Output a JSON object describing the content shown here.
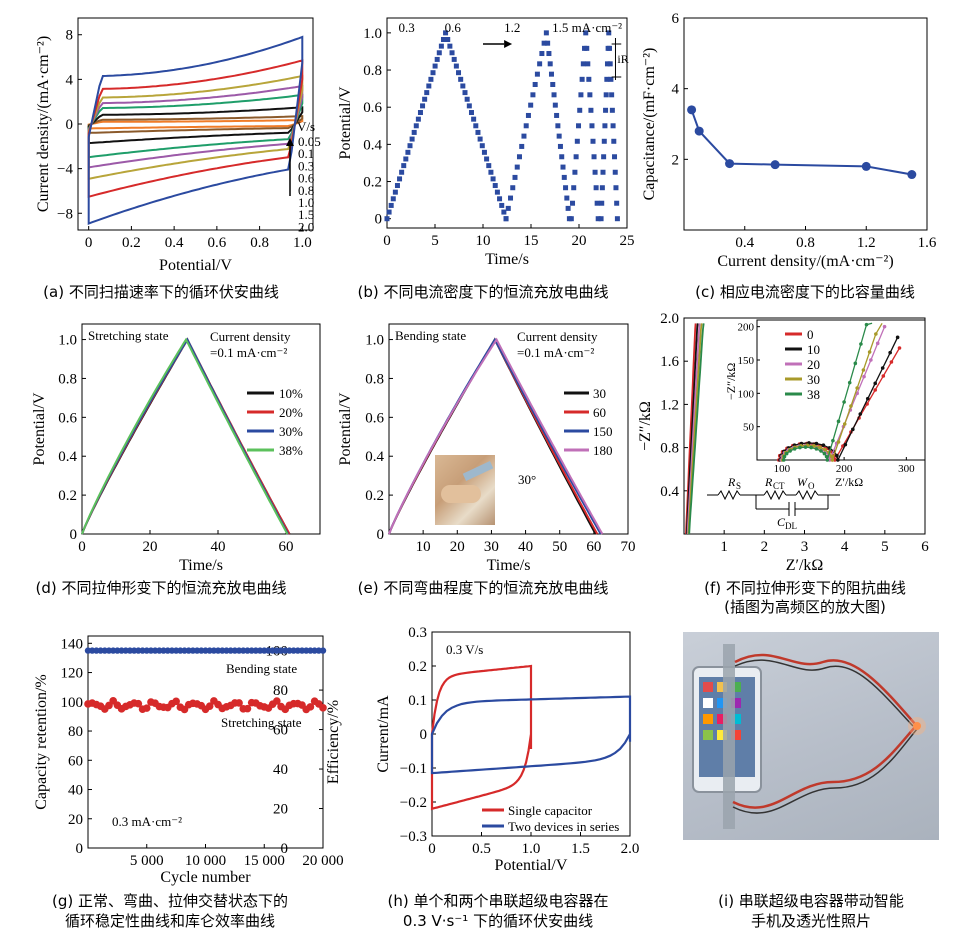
{
  "captions": {
    "a": "(a) 不同扫描速率下的循环伏安曲线",
    "b": "(b) 不同电流密度下的恒流充放电曲线",
    "c": "(c) 相应电流密度下的比容量曲线",
    "d": "(d) 不同拉伸形变下的恒流充放电曲线",
    "e": "(e) 不同弯曲程度下的恒流充放电曲线",
    "f1": "(f) 不同拉伸形变下的阻抗曲线",
    "f2": "(插图为高频区的放大图)",
    "g1": "(g) 正常、弯曲、拉伸交替状态下的",
    "g2": "循环稳定性曲线和库仑效率曲线",
    "h1": "(h) 单个和两个串联超级电容器在",
    "h2": "0.3 V·s⁻¹ 下的循环伏安曲线",
    "i1": "(i) 串联超级电容器带动智能",
    "i2": "手机及透光性照片"
  },
  "chart_data": [
    {
      "id": "a",
      "type": "line",
      "xlabel": "Potential/V",
      "ylabel": "Current density/(mA·cm⁻²)",
      "xlim": [
        -0.05,
        1.05
      ],
      "ylim": [
        -9.5,
        9.5
      ],
      "xticks": [
        0,
        0.2,
        0.4,
        0.6,
        0.8,
        1.0
      ],
      "xticklabels": [
        "0",
        "0.2",
        "0.4",
        "0.6",
        "0.8",
        "1.0"
      ],
      "yticks": [
        -8,
        -4,
        0,
        4,
        8
      ],
      "yticklabels": [
        "−8",
        "−4",
        "0",
        "4",
        "8"
      ],
      "legend_title": "V/s",
      "series": [
        {
          "name": "0.05",
          "color": "#f07c28",
          "amplitude": 0.35
        },
        {
          "name": "0.1",
          "color": "#8b5a2b",
          "amplitude": 0.7
        },
        {
          "name": "0.3",
          "color": "#111111",
          "amplitude": 1.5
        },
        {
          "name": "0.6",
          "color": "#1f9e6a",
          "amplitude": 2.6
        },
        {
          "name": "0.8",
          "color": "#9c5aa8",
          "amplitude": 3.4
        },
        {
          "name": "1.0",
          "color": "#b8a53a",
          "amplitude": 4.3
        },
        {
          "name": "1.5",
          "color": "#d62a2a",
          "amplitude": 5.7
        },
        {
          "name": "2.0",
          "color": "#2b4aa0",
          "amplitude": 7.8
        }
      ]
    },
    {
      "id": "b",
      "type": "scatter",
      "xlabel": "Time/s",
      "ylabel": "Potential/V",
      "xlim": [
        0,
        25
      ],
      "ylim": [
        -0.05,
        1.08
      ],
      "xticks": [
        0,
        5,
        10,
        15,
        20,
        25
      ],
      "yticks": [
        0,
        0.2,
        0.4,
        0.6,
        0.8,
        1.0
      ],
      "yticklabels": [
        "0",
        "0.2",
        "0.4",
        "0.6",
        "0.8",
        "1.0"
      ],
      "color": "#2b4aa0",
      "annotations": [
        "0.3",
        "0.6",
        "1.2",
        "1.5 mA·cm⁻²",
        "iR"
      ],
      "segments": [
        {
          "t": [
            0,
            6.1,
            12.4
          ]
        },
        {
          "t": [
            12.4,
            16.6,
            19.0
          ]
        },
        {
          "t": [
            19.2,
            20.7,
            22.0
          ]
        },
        {
          "t": [
            22.3,
            23.1,
            24.0
          ]
        }
      ]
    },
    {
      "id": "c",
      "type": "line",
      "xlabel": "Current density/(mA·cm⁻²)",
      "ylabel": "Capacitance/(mF·cm⁻²)",
      "xlim": [
        0,
        1.6
      ],
      "ylim": [
        0,
        6
      ],
      "xticks": [
        0,
        0.4,
        0.8,
        1.2,
        1.6
      ],
      "xticklabels": [
        "",
        "0.4",
        "0.8",
        "1.2",
        "1.6"
      ],
      "yticks": [
        2,
        4,
        6
      ],
      "yticklabels": [
        "2",
        "4",
        "6"
      ],
      "x": [
        0.05,
        0.1,
        0.3,
        0.6,
        1.2,
        1.5
      ],
      "y": [
        3.4,
        2.8,
        1.88,
        1.85,
        1.8,
        1.57
      ],
      "color": "#2b4aa0"
    },
    {
      "id": "d",
      "type": "line",
      "xlabel": "Time/s",
      "ylabel": "Potential/V",
      "xlim": [
        0,
        70
      ],
      "ylim": [
        0,
        1.08
      ],
      "xticks": [
        0,
        20,
        40,
        60
      ],
      "yticks": [
        0,
        0.2,
        0.4,
        0.6,
        0.8,
        1.0
      ],
      "yticklabels": [
        "0",
        "0.2",
        "0.4",
        "0.6",
        "0.8",
        "1.0"
      ],
      "annotations": [
        "Stretching state",
        "Current density",
        "=0.1 mA·cm⁻²"
      ],
      "series": [
        {
          "name": "10%",
          "color": "#111111",
          "peak": 31,
          "end": 61
        },
        {
          "name": "20%",
          "color": "#d62a2a",
          "peak": 31,
          "end": 61
        },
        {
          "name": "30%",
          "color": "#2b4aa0",
          "peak": 31,
          "end": 60.6
        },
        {
          "name": "38%",
          "color": "#5cc15c",
          "peak": 30.6,
          "end": 60.4
        }
      ]
    },
    {
      "id": "e",
      "type": "line",
      "xlabel": "Time/s",
      "ylabel": "Potential/V",
      "xlim": [
        0,
        70
      ],
      "ylim": [
        0,
        1.08
      ],
      "xticks": [
        0,
        10,
        20,
        30,
        40,
        50,
        60,
        70
      ],
      "xticklabels": [
        "",
        "10",
        "20",
        "30",
        "40",
        "50",
        "60",
        "70"
      ],
      "yticks": [
        0,
        0.2,
        0.4,
        0.6,
        0.8,
        1.0
      ],
      "yticklabels": [
        "0",
        "0.2",
        "0.4",
        "0.6",
        "0.8",
        "1.0"
      ],
      "annotations": [
        "Bending state",
        "Current density",
        "=0.1 mA·cm⁻²",
        "30°"
      ],
      "series": [
        {
          "name": "30",
          "color": "#111111",
          "peak": 31,
          "end": 60.5
        },
        {
          "name": "60",
          "color": "#d62a2a",
          "peak": 31,
          "end": 61
        },
        {
          "name": "150",
          "color": "#2b4aa0",
          "peak": 31,
          "end": 62
        },
        {
          "name": "180",
          "color": "#c070b8",
          "peak": 31.5,
          "end": 62.5
        }
      ]
    },
    {
      "id": "f",
      "type": "line",
      "xlabel": "Z′/kΩ",
      "ylabel": "−Z″/kΩ",
      "xlim": [
        0,
        6
      ],
      "ylim": [
        0,
        2.0
      ],
      "xticks": [
        1,
        2,
        3,
        4,
        5,
        6
      ],
      "xticklabels": [
        "1",
        "2",
        "3",
        "4",
        "5",
        "6"
      ],
      "yticks": [
        0.4,
        0.8,
        1.2,
        1.6,
        2.0
      ],
      "yticklabels": [
        "0.4",
        "0.8",
        "1.2",
        "1.6",
        "2.0"
      ],
      "series": [
        {
          "name": "0",
          "color": "#d62a2a"
        },
        {
          "name": "10",
          "color": "#111111"
        },
        {
          "name": "20",
          "color": "#c070b8"
        },
        {
          "name": "30",
          "color": "#a89a2a"
        },
        {
          "name": "38",
          "color": "#2a8a4a"
        }
      ],
      "inset": {
        "xlabel": "Z′/kΩ",
        "ylabel": "−Z″/kΩ",
        "xlim": [
          60,
          330
        ],
        "ylim": [
          0,
          210
        ],
        "xticks": [
          100,
          200,
          300
        ],
        "yticks": [
          50,
          100,
          150,
          200
        ]
      },
      "circuit_labels": [
        "R",
        "S",
        "R",
        "CT",
        "W",
        "O",
        "C",
        "DL"
      ]
    },
    {
      "id": "g",
      "type": "scatter",
      "xlabel": "Cycle number",
      "ylabel": "Capacity retention/%",
      "y2label": "Efficiency/%",
      "xlim": [
        0,
        20000
      ],
      "ylim": [
        0,
        145
      ],
      "y2lim": [
        0,
        107.4
      ],
      "xticks": [
        5000,
        10000,
        15000,
        20000
      ],
      "xticklabels": [
        "5 000",
        "10 000",
        "15 000",
        "20 000"
      ],
      "yticks": [
        0,
        20,
        40,
        60,
        80,
        100,
        120,
        140
      ],
      "y2ticks": [
        0,
        20,
        40,
        60,
        80,
        100
      ],
      "annotations": [
        "Bending state",
        "Stretching state",
        "0.3 mA·cm⁻²"
      ],
      "series": [
        {
          "name": "Bending state",
          "axis": "y2",
          "color": "#2b4aa0",
          "mean": 100
        },
        {
          "name": "Stretching state",
          "axis": "y",
          "color": "#d62a2a",
          "mean": 97
        }
      ]
    },
    {
      "id": "h",
      "type": "line",
      "xlabel": "Potential/V",
      "ylabel": "Current/mA",
      "xlim": [
        0,
        2.0
      ],
      "ylim": [
        -0.3,
        0.3
      ],
      "xticks": [
        0,
        0.5,
        1.0,
        1.5,
        2.0
      ],
      "xticklabels": [
        "0",
        "0.5",
        "1.0",
        "1.5",
        "2.0"
      ],
      "yticks": [
        -0.3,
        -0.2,
        -0.1,
        0,
        0.1,
        0.2,
        0.3
      ],
      "yticklabels": [
        "−0.3",
        "−0.2",
        "−0.1",
        "0",
        "0.1",
        "0.2",
        "0.3"
      ],
      "annotations": [
        "0.3 V/s"
      ],
      "series": [
        {
          "name": "Single capacitor",
          "color": "#d62a2a",
          "vmax": 1.0,
          "top": 0.2,
          "bottom": -0.22
        },
        {
          "name": "Two devices in series",
          "color": "#2b4aa0",
          "vmax": 2.0,
          "top": 0.11,
          "bottom": -0.115
        }
      ]
    }
  ]
}
